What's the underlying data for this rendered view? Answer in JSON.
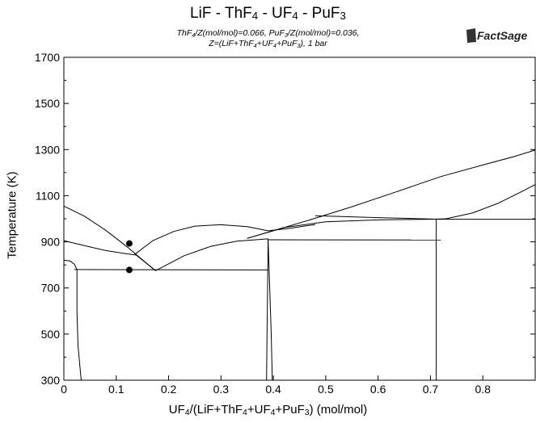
{
  "chart_data": {
    "type": "line",
    "title": "LiF - ThF4 - UF4 - PuF3",
    "title_parts": [
      "LiF - ThF",
      "4",
      " - UF",
      "4",
      " - PuF",
      "3"
    ],
    "subtitle_line1": "ThF4/Z(mol/mol)=0.066, PuF3/Z(mol/mol)=0.036,",
    "subtitle_line2": "Z=(LiF+ThF4+UF4+PuF3), 1 bar",
    "subtitle_line1_parts": [
      "ThF",
      "4",
      "/Z(mol/mol)=0.066, PuF",
      "3",
      "/Z(mol/mol)=0.036,"
    ],
    "subtitle_line2_parts": [
      "Z=(LiF+ThF",
      "4",
      "+UF",
      "4",
      "+PuF",
      "3",
      "), 1 bar"
    ],
    "xlabel": "UF4/(LiF+ThF4+UF4+PuF3) (mol/mol)",
    "xlabel_parts": [
      "UF",
      "4",
      "/(LiF+ThF",
      "4",
      "+UF",
      "4",
      "+PuF",
      "3",
      ") (mol/mol)"
    ],
    "ylabel": "Temperature (K)",
    "xlim": [
      0,
      0.9
    ],
    "ylim": [
      300,
      1700
    ],
    "x_ticks": [
      0,
      0.1,
      0.2,
      0.3,
      0.4,
      0.5,
      0.6,
      0.7,
      0.8
    ],
    "x_tick_labels": [
      "0",
      "0.1",
      "0.2",
      "0.3",
      "0.4",
      "0.5",
      "0.6",
      "0.7",
      "0.8"
    ],
    "y_ticks": [
      300,
      500,
      700,
      900,
      1100,
      1300,
      1500,
      1700
    ],
    "y_tick_labels": [
      "300",
      "500",
      "700",
      "900",
      "1100",
      "1300",
      "1500",
      "1700"
    ],
    "y_minor_ticks": [
      400,
      600,
      800,
      1000,
      1200,
      1400,
      1600
    ],
    "grid": false,
    "logo_text": "FactSage",
    "series": [
      {
        "points": [
          [
            0,
            1055
          ],
          [
            0.04,
            1010
          ],
          [
            0.08,
            950
          ],
          [
            0.12,
            880
          ],
          [
            0.15,
            822
          ],
          [
            0.175,
            775
          ]
        ]
      },
      {
        "points": [
          [
            0,
            905
          ],
          [
            0.04,
            883
          ],
          [
            0.08,
            862
          ],
          [
            0.12,
            848
          ],
          [
            0.138,
            843
          ]
        ]
      },
      {
        "points": [
          [
            0.138,
            843
          ],
          [
            0.175,
            775
          ]
        ]
      },
      {
        "points": [
          [
            0.135,
            845
          ],
          [
            0.17,
            905
          ],
          [
            0.21,
            945
          ],
          [
            0.25,
            968
          ],
          [
            0.3,
            974
          ],
          [
            0.35,
            966
          ],
          [
            0.39,
            948
          ],
          [
            0.43,
            958
          ],
          [
            0.48,
            975
          ]
        ]
      },
      {
        "points": [
          [
            0.175,
            775
          ],
          [
            0.23,
            840
          ],
          [
            0.28,
            880
          ],
          [
            0.33,
            903
          ],
          [
            0.39,
            913
          ]
        ]
      },
      {
        "points": [
          [
            0.35,
            915
          ],
          [
            0.4,
            948
          ],
          [
            0.48,
            1002
          ],
          [
            0.55,
            1052
          ],
          [
            0.63,
            1113
          ],
          [
            0.72,
            1183
          ],
          [
            0.8,
            1233
          ],
          [
            0.86,
            1270
          ],
          [
            0.9,
            1298
          ]
        ]
      },
      {
        "points": [
          [
            0.35,
            915
          ],
          [
            0.42,
            962
          ],
          [
            0.5,
            987
          ],
          [
            0.6,
            995
          ],
          [
            0.7,
            998
          ],
          [
            0.73,
            1000
          ],
          [
            0.78,
            1025
          ],
          [
            0.83,
            1068
          ],
          [
            0.87,
            1113
          ],
          [
            0.9,
            1148
          ]
        ]
      },
      {
        "points": [
          [
            0.48,
            1013
          ],
          [
            0.6,
            1005
          ],
          [
            0.72,
            998
          ]
        ]
      },
      {
        "points": [
          [
            0.72,
            998
          ],
          [
            0.9,
            998
          ]
        ]
      },
      {
        "points": [
          [
            0.39,
            909
          ],
          [
            0.72,
            908
          ]
        ]
      },
      {
        "points": [
          [
            0.02,
            780
          ],
          [
            0.39,
            778
          ]
        ]
      },
      {
        "points": [
          [
            0,
            820
          ],
          [
            0.012,
            817
          ],
          [
            0.02,
            803
          ],
          [
            0.025,
            780
          ]
        ]
      },
      {
        "points": [
          [
            0.025,
            780
          ],
          [
            0.025,
            600
          ],
          [
            0.027,
            450
          ],
          [
            0.033,
            300
          ]
        ]
      },
      {
        "points": [
          [
            0.39,
            913
          ],
          [
            0.389,
            700
          ],
          [
            0.388,
            500
          ],
          [
            0.387,
            300
          ]
        ]
      },
      {
        "points": [
          [
            0.39,
            913
          ],
          [
            0.393,
            700
          ],
          [
            0.396,
            500
          ],
          [
            0.398,
            300
          ]
        ]
      },
      {
        "points": [
          [
            0.711,
            998
          ],
          [
            0.711,
            300
          ]
        ]
      }
    ],
    "markers": [
      {
        "x": 0.125,
        "y": 893
      },
      {
        "x": 0.125,
        "y": 778
      }
    ]
  }
}
